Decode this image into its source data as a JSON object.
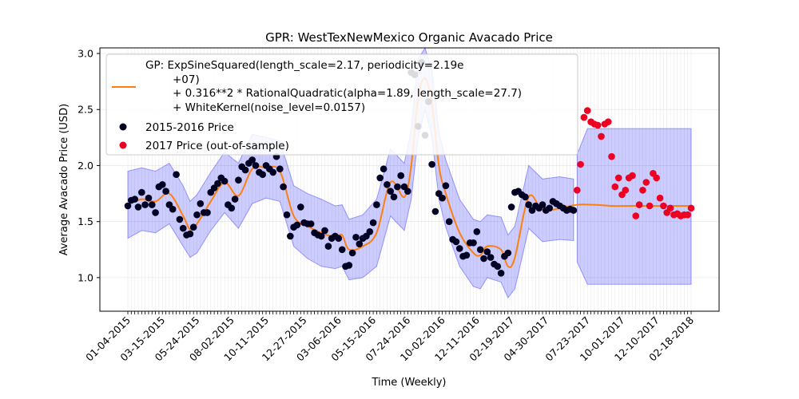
{
  "chart_data": {
    "type": "scatter",
    "title": "GPR: WestTexNewMexico Organic Avacado Price",
    "xlabel": "Time (Weekly)",
    "ylabel": "Average Avacado Price (USD)",
    "ylim": [
      0.7,
      3.05
    ],
    "yticks": [
      "1.0",
      "1.5",
      "2.0",
      "2.5",
      "3.0"
    ],
    "xtick_labels": [
      "01-04-2015",
      "03-15-2015",
      "05-24-2015",
      "08-02-2015",
      "10-11-2015",
      "12-27-2015",
      "03-06-2016",
      "05-15-2016",
      "07-24-2016",
      "10-02-2016",
      "12-11-2016",
      "02-19-2017",
      "04-30-2017",
      "07-23-2017",
      "10-01-2017",
      "12-10-2017",
      "02-18-2018"
    ],
    "xtick_label_index": [
      0,
      10,
      20,
      30,
      40,
      51,
      61,
      71,
      81,
      91,
      101,
      111,
      121,
      133,
      143,
      153,
      163
    ],
    "n_weeks": 164,
    "grid": true,
    "legend_position": "top-left",
    "legend": {
      "gp_lines": [
        "GP: ExpSineSquared(length_scale=2.17, periodicity=2.19e",
        "+07)",
        "+ 0.316**2 * RationalQuadratic(alpha=1.89, length_scale=27.7)",
        "+ WhiteKernel(noise_level=0.0157)"
      ],
      "train_label": "2015-2016 Price",
      "test_label": "2017 Price (out-of-sample)"
    },
    "colors": {
      "gp_line": "#ff7f0e",
      "band": "#0000ff",
      "train": "#000022",
      "test": "#ee0022"
    },
    "series": [
      {
        "name": "2015-2016 Price",
        "x": [
          0,
          1,
          2,
          3,
          4,
          5,
          6,
          7,
          8,
          9,
          10,
          11,
          12,
          13,
          14,
          15,
          16,
          17,
          18,
          19,
          20,
          21,
          22,
          23,
          24,
          25,
          26,
          27,
          28,
          29,
          30,
          31,
          32,
          33,
          34,
          35,
          36,
          37,
          38,
          39,
          40,
          41,
          42,
          43,
          44,
          45,
          46,
          47,
          48,
          49,
          50,
          51,
          52,
          53,
          54,
          55,
          56,
          57,
          58,
          59,
          60,
          61,
          62,
          63,
          64,
          65,
          66,
          67,
          68,
          69,
          70,
          71,
          72,
          73,
          74,
          75,
          76,
          77,
          78,
          79,
          80,
          81,
          82,
          83,
          84,
          85,
          86,
          87,
          88,
          89,
          90,
          91,
          92,
          93,
          94,
          95,
          96,
          97,
          98,
          99,
          100,
          101,
          102,
          103,
          104,
          105,
          106,
          107,
          108,
          109,
          110,
          111,
          112,
          113,
          114,
          115,
          116,
          117,
          118,
          119,
          120,
          121,
          122,
          123,
          124,
          125,
          126,
          127,
          128,
          129
        ],
        "y": [
          1.64,
          1.69,
          1.7,
          1.63,
          1.76,
          1.65,
          1.71,
          1.65,
          1.58,
          1.81,
          1.83,
          1.77,
          1.65,
          1.61,
          1.92,
          1.52,
          1.44,
          1.38,
          1.39,
          1.45,
          1.56,
          1.66,
          1.58,
          1.58,
          1.76,
          1.8,
          1.84,
          1.89,
          1.86,
          1.65,
          1.62,
          1.7,
          1.87,
          1.99,
          1.96,
          2.02,
          2.05,
          2.0,
          1.94,
          1.92,
          2.0,
          1.97,
          1.94,
          2.08,
          1.97,
          1.81,
          1.56,
          1.37,
          1.45,
          1.47,
          1.63,
          1.49,
          1.48,
          1.48,
          1.4,
          1.38,
          1.37,
          1.42,
          1.28,
          1.35,
          1.37,
          1.35,
          1.25,
          1.1,
          1.11,
          1.22,
          1.36,
          1.3,
          1.35,
          1.37,
          1.41,
          1.49,
          1.65,
          1.89,
          1.97,
          1.83,
          1.77,
          1.72,
          1.81,
          1.91,
          1.81,
          1.77,
          2.83,
          2.81,
          2.35,
          2.92,
          2.27,
          2.57,
          2.01,
          1.59,
          1.75,
          1.71,
          1.82,
          1.5,
          1.34,
          1.32,
          1.26,
          1.19,
          1.2,
          1.31,
          1.31,
          1.41,
          1.25,
          1.17,
          1.23,
          1.18,
          1.12,
          1.1,
          1.04,
          1.19,
          1.22,
          1.63,
          1.76,
          1.77,
          1.74,
          1.72,
          1.65,
          1.6,
          1.64,
          1.62,
          1.65,
          1.6,
          1.62,
          1.68,
          1.66,
          1.64,
          1.62,
          1.6,
          1.61,
          1.6
        ]
      },
      {
        "name": "2017 Price (out-of-sample)",
        "x": [
          130,
          131,
          132,
          133,
          134,
          135,
          136,
          137,
          138,
          139,
          140,
          141,
          142,
          143,
          144,
          145,
          146,
          147,
          148,
          149,
          150,
          151,
          152,
          153,
          154,
          155,
          156,
          157,
          158,
          159,
          160,
          161,
          162,
          163
        ],
        "y": [
          1.78,
          2.01,
          2.43,
          2.49,
          2.39,
          2.37,
          2.36,
          2.26,
          2.37,
          2.39,
          2.08,
          1.81,
          1.89,
          1.74,
          1.78,
          1.89,
          1.91,
          1.55,
          1.65,
          1.78,
          1.85,
          1.64,
          1.93,
          1.89,
          1.71,
          1.64,
          1.58,
          1.62,
          1.56,
          1.57,
          1.55,
          1.56,
          1.56,
          1.62
        ]
      }
    ],
    "gp_mean": {
      "x": [
        0,
        4,
        8,
        12,
        16,
        18,
        20,
        24,
        28,
        32,
        36,
        40,
        44,
        48,
        52,
        56,
        60,
        62,
        64,
        68,
        72,
        76,
        80,
        82,
        84,
        86,
        88,
        90,
        92,
        96,
        100,
        102,
        104,
        108,
        110,
        112,
        116,
        120,
        125,
        130,
        135,
        140,
        145,
        150,
        155,
        160,
        163
      ],
      "y": [
        1.65,
        1.7,
        1.68,
        1.75,
        1.55,
        1.43,
        1.48,
        1.68,
        1.85,
        1.73,
        1.97,
        1.98,
        1.95,
        1.55,
        1.46,
        1.4,
        1.36,
        1.38,
        1.25,
        1.28,
        1.4,
        1.85,
        1.72,
        2.0,
        2.6,
        2.78,
        2.55,
        2.0,
        1.75,
        1.4,
        1.22,
        1.2,
        1.28,
        1.25,
        1.1,
        1.18,
        1.72,
        1.6,
        1.62,
        1.65,
        1.65,
        1.64,
        1.64,
        1.64,
        1.64,
        1.64,
        1.64
      ]
    },
    "gp_band": {
      "x": [
        0,
        4,
        8,
        12,
        16,
        18,
        20,
        24,
        28,
        32,
        36,
        40,
        44,
        48,
        52,
        56,
        60,
        62,
        64,
        68,
        72,
        76,
        80,
        82,
        84,
        86,
        88,
        90,
        92,
        96,
        100,
        102,
        104,
        108,
        110,
        112,
        116,
        120,
        125,
        129
      ],
      "upper": [
        1.95,
        1.98,
        1.95,
        2.02,
        1.82,
        1.68,
        1.74,
        1.94,
        2.12,
        2.02,
        2.28,
        2.25,
        2.22,
        1.82,
        1.75,
        1.7,
        1.64,
        1.65,
        1.52,
        1.56,
        1.7,
        2.15,
        2.02,
        2.32,
        2.95,
        3.05,
        2.85,
        2.3,
        2.05,
        1.7,
        1.52,
        1.5,
        1.56,
        1.54,
        1.38,
        1.46,
        2.0,
        1.88,
        1.9,
        1.88
      ],
      "lower": [
        1.35,
        1.42,
        1.4,
        1.48,
        1.28,
        1.18,
        1.22,
        1.42,
        1.58,
        1.44,
        1.66,
        1.71,
        1.68,
        1.28,
        1.17,
        1.1,
        1.08,
        1.1,
        0.98,
        1.0,
        1.1,
        1.55,
        1.42,
        1.7,
        2.25,
        2.5,
        2.25,
        1.7,
        1.45,
        1.1,
        0.92,
        0.9,
        1.0,
        0.96,
        0.82,
        0.9,
        1.44,
        1.32,
        1.34,
        1.33
      ]
    },
    "gp_band_2017": {
      "x": [
        130,
        133,
        163
      ],
      "upper": [
        2.1,
        2.33,
        2.33
      ],
      "lower": [
        1.14,
        0.94,
        0.94
      ]
    }
  }
}
